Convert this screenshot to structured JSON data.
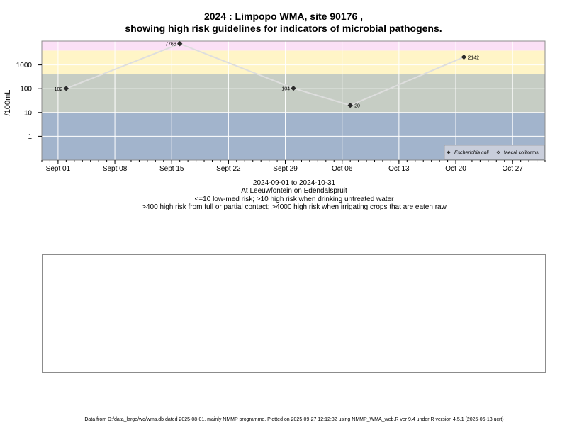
{
  "title_line1": "2024 : Limpopo WMA, site 90176 ,",
  "title_line2": "showing high risk guidelines for indicators of microbial pathogens.",
  "caption": {
    "date_range": "2024-09-01 to 2024-10-31",
    "location": "At Leeuwfontein on Edendalspruit",
    "risk_line1": "<=10 low-med risk; >10 high risk when drinking untreated water",
    "risk_line2": ">400 high risk from full or partial contact; >4000 high risk when irrigating crops that are eaten raw"
  },
  "footer": "Data from D:/data_large/wq/wms.db dated 2025-08-01, mainly NMMP programme. Plotted on 2025-09-27 12:12:32 using NMMP_WMA_web.R ver 9.4 under R version 4.5.1 (2025-06-13 ucrt)",
  "chart_data": {
    "type": "scatter",
    "ylabel": "/100mL",
    "yscale": "log",
    "ylim": [
      0.1,
      10000
    ],
    "xlim": [
      "2024-08-30",
      "2024-10-31"
    ],
    "y_ticks": [
      {
        "value": 1,
        "label": "1"
      },
      {
        "value": 10,
        "label": "10"
      },
      {
        "value": 100,
        "label": "100"
      },
      {
        "value": 1000,
        "label": "1000"
      }
    ],
    "x_ticks": [
      {
        "date": "2024-09-01",
        "label": "Sept 01"
      },
      {
        "date": "2024-09-08",
        "label": "Sept 08"
      },
      {
        "date": "2024-09-15",
        "label": "Sept 15"
      },
      {
        "date": "2024-09-22",
        "label": "Sept 22"
      },
      {
        "date": "2024-09-29",
        "label": "Sept 29"
      },
      {
        "date": "2024-10-06",
        "label": "Oct 06"
      },
      {
        "date": "2024-10-13",
        "label": "Oct 13"
      },
      {
        "date": "2024-10-20",
        "label": "Oct 20"
      },
      {
        "date": "2024-10-27",
        "label": "Oct 27"
      }
    ],
    "risk_bands": [
      {
        "from": 0.1,
        "to": 10,
        "color": "#a2b4cc"
      },
      {
        "from": 10,
        "to": 400,
        "color": "#c6cdc4"
      },
      {
        "from": 400,
        "to": 4000,
        "color": "#fff5c7"
      },
      {
        "from": 4000,
        "to": 10000,
        "color": "#fbe0f6"
      }
    ],
    "series": [
      {
        "name": "Escherichia coli",
        "marker": "filled-diamond",
        "points": [
          {
            "date": "2024-09-02",
            "value": 102,
            "label": "102"
          },
          {
            "date": "2024-09-16",
            "value": 7766,
            "label": "7766"
          },
          {
            "date": "2024-09-30",
            "value": 104,
            "label": "104"
          },
          {
            "date": "2024-10-07",
            "value": 20,
            "label": "20"
          },
          {
            "date": "2024-10-21",
            "value": 2142,
            "label": "2142"
          }
        ]
      },
      {
        "name": "faecal coliforms",
        "marker": "open-diamond",
        "points": []
      }
    ],
    "legend_position": "bottom-right",
    "grid": true,
    "colors": {
      "line": "#dedede",
      "marker": "#2b2b2b",
      "grid": "#ffffff",
      "frame": "#8c8c8c"
    }
  }
}
